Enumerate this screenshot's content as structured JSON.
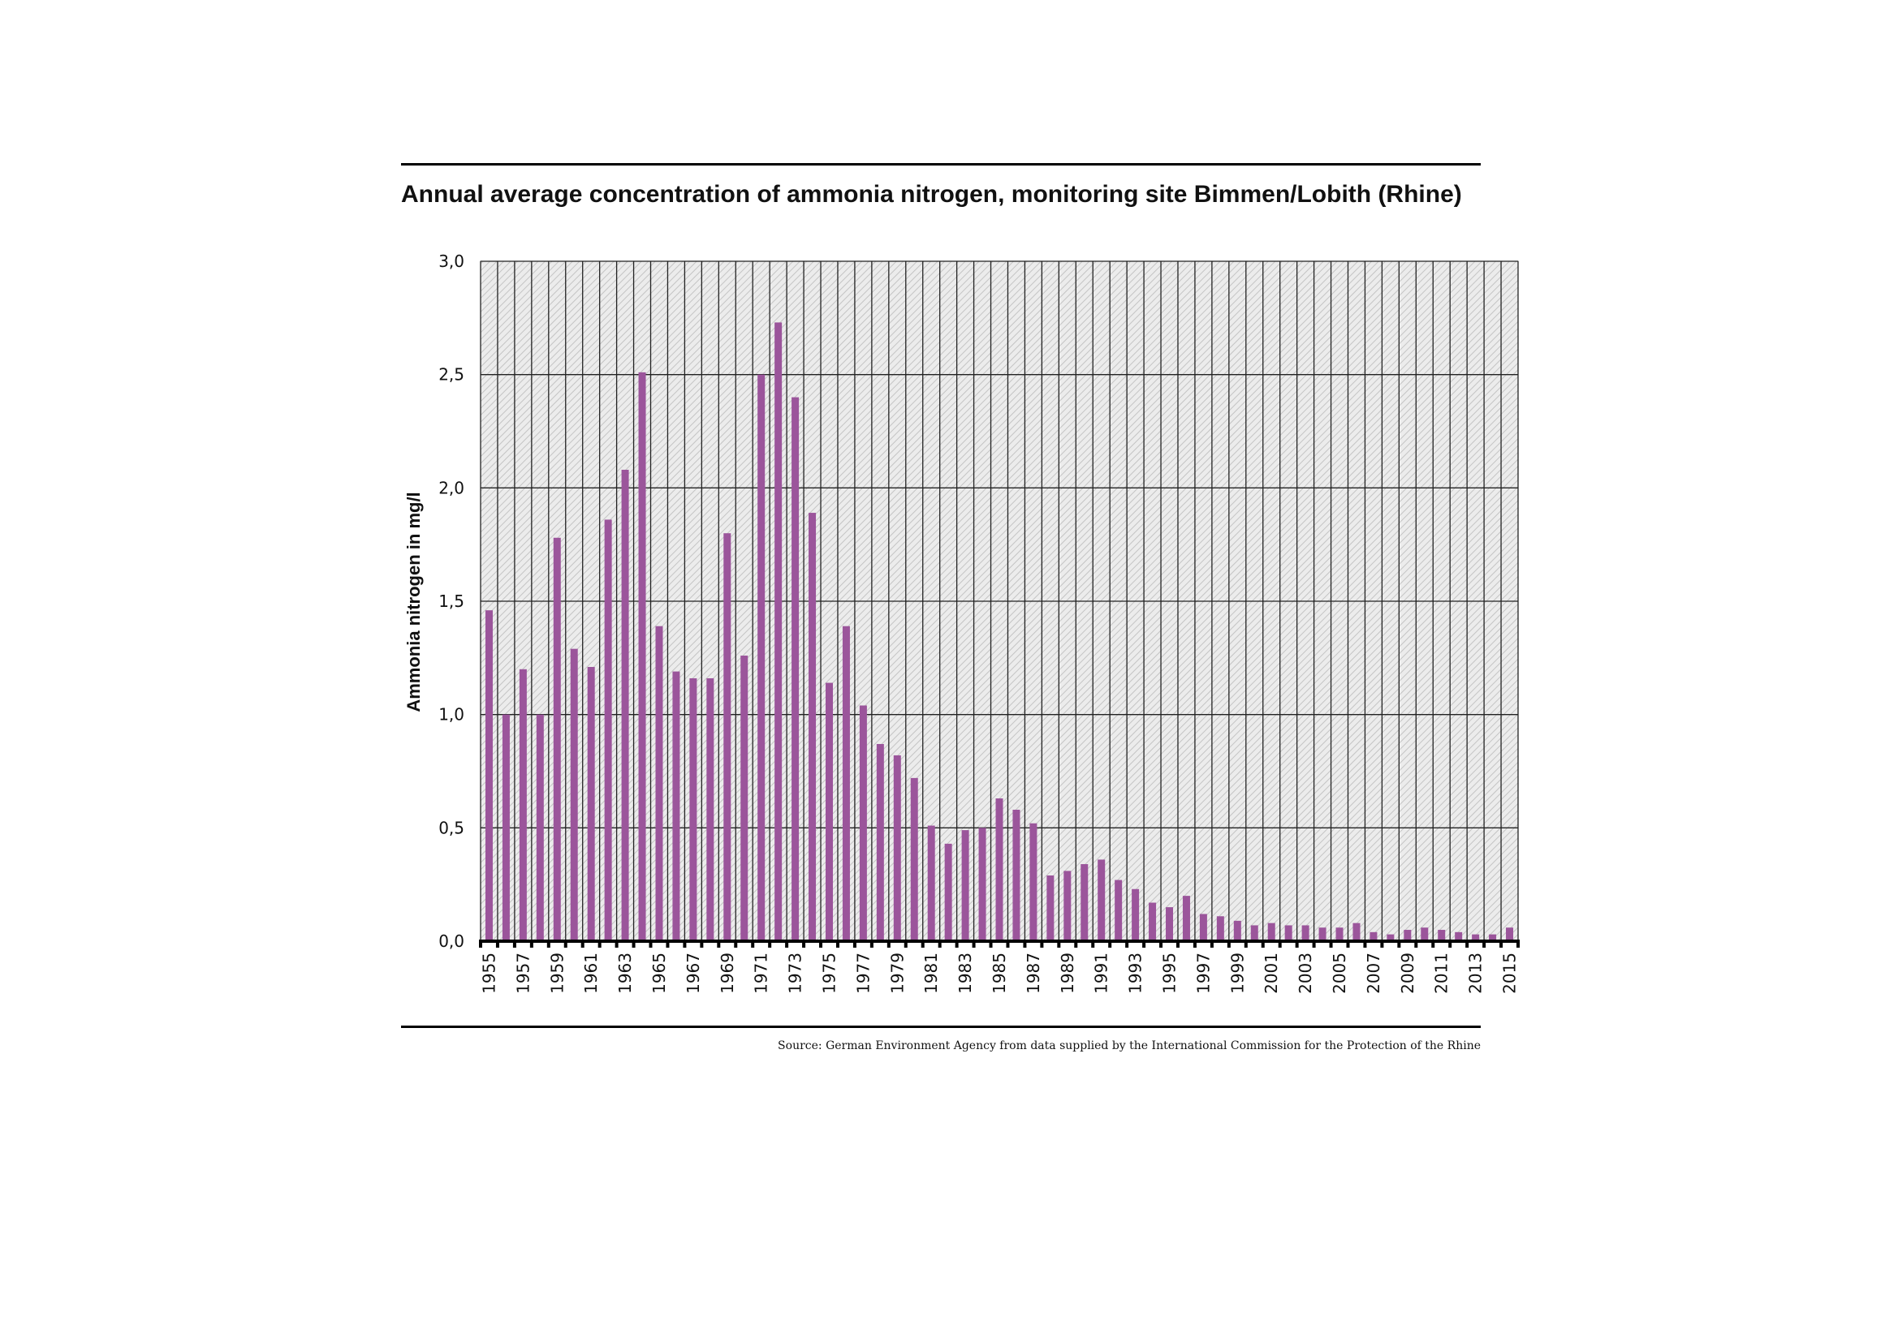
{
  "chart_data": {
    "type": "bar",
    "title": "Annual average concentration of ammonia nitrogen, monitoring site Bimmen/Lobith (Rhine)",
    "xlabel": "",
    "ylabel": "Ammonia nitrogen in mg/l",
    "ylim": [
      0,
      3.0
    ],
    "yticks": [
      "0,0",
      "0,5",
      "1,0",
      "1,5",
      "2,0",
      "2,5",
      "3,0"
    ],
    "ytick_values": [
      0,
      0.5,
      1.0,
      1.5,
      2.0,
      2.5,
      3.0
    ],
    "grid": true,
    "bar_color": "#9b559b",
    "categories": [
      1955,
      1956,
      1957,
      1958,
      1959,
      1960,
      1961,
      1962,
      1963,
      1964,
      1965,
      1966,
      1967,
      1968,
      1969,
      1970,
      1971,
      1972,
      1973,
      1974,
      1975,
      1976,
      1977,
      1978,
      1979,
      1980,
      1981,
      1982,
      1983,
      1984,
      1985,
      1986,
      1987,
      1988,
      1989,
      1990,
      1991,
      1992,
      1993,
      1994,
      1995,
      1996,
      1997,
      1998,
      1999,
      2000,
      2001,
      2002,
      2003,
      2004,
      2005,
      2006,
      2007,
      2008,
      2009,
      2010,
      2011,
      2012,
      2013,
      2014,
      2015
    ],
    "xtick_labels": [
      "1955",
      "1957",
      "1959",
      "1961",
      "1963",
      "1965",
      "1967",
      "1969",
      "1971",
      "1973",
      "1975",
      "1977",
      "1979",
      "1981",
      "1983",
      "1985",
      "1987",
      "1989",
      "1991",
      "1993",
      "1995",
      "1997",
      "1999",
      "2001",
      "2003",
      "2005",
      "2007",
      "2009",
      "2011",
      "2013",
      "2015"
    ],
    "values": [
      1.46,
      1.0,
      1.2,
      1.0,
      1.78,
      1.29,
      1.21,
      1.86,
      2.08,
      2.51,
      1.39,
      1.19,
      1.16,
      1.16,
      1.8,
      1.26,
      2.5,
      2.73,
      2.4,
      1.89,
      1.14,
      1.39,
      1.04,
      0.87,
      0.82,
      0.72,
      0.51,
      0.43,
      0.49,
      0.5,
      0.63,
      0.58,
      0.52,
      0.29,
      0.31,
      0.34,
      0.36,
      0.27,
      0.23,
      0.17,
      0.15,
      0.2,
      0.12,
      0.11,
      0.09,
      0.07,
      0.08,
      0.07,
      0.07,
      0.06,
      0.06,
      0.08,
      0.04,
      0.03,
      0.05,
      0.06,
      0.05,
      0.04,
      0.03,
      0.03,
      0.06
    ]
  },
  "source": "Source: German Environment Agency from data supplied by the International Commission for the Protection of the Rhine"
}
